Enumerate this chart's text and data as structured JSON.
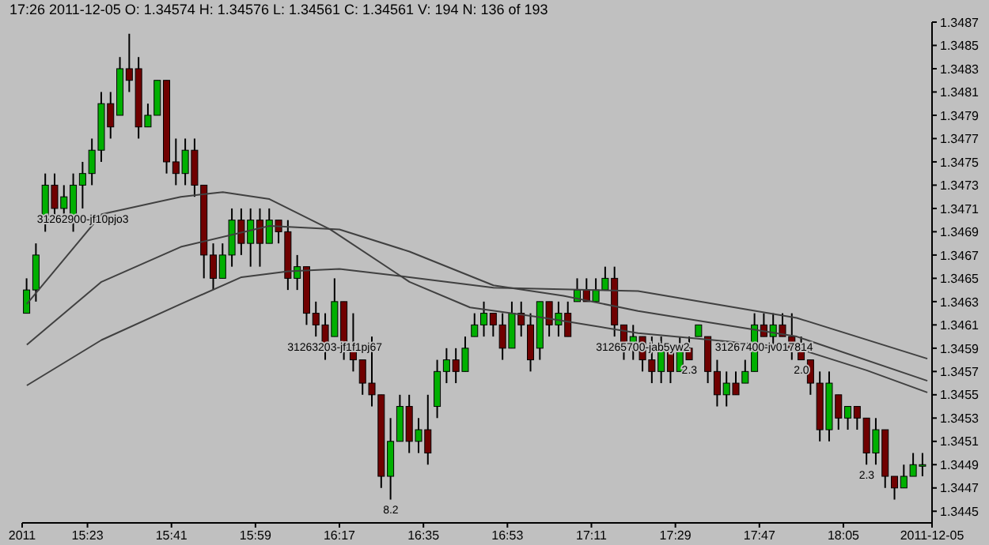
{
  "chart_data": {
    "type": "candlestick",
    "title": "17:26 2011-12-05 O: 1.34574 H: 1.34576 L: 1.34561 C: 1.34561 V: 194 N: 136 of 193",
    "x": [
      "2011-12-05T15:10",
      "2011-12-05T15:12",
      "2011-12-05T15:14",
      "2011-12-05T15:16",
      "2011-12-05T15:18",
      "2011-12-05T15:20",
      "2011-12-05T15:22",
      "2011-12-05T15:24",
      "2011-12-05T15:26",
      "2011-12-05T15:28",
      "2011-12-05T15:30",
      "2011-12-05T15:32",
      "2011-12-05T15:34",
      "2011-12-05T15:36",
      "2011-12-05T15:38",
      "2011-12-05T15:40",
      "2011-12-05T15:42",
      "2011-12-05T15:44",
      "2011-12-05T15:46",
      "2011-12-05T15:48",
      "2011-12-05T15:50",
      "2011-12-05T15:52",
      "2011-12-05T15:54",
      "2011-12-05T15:56",
      "2011-12-05T15:58",
      "2011-12-05T16:00",
      "2011-12-05T16:02",
      "2011-12-05T16:04",
      "2011-12-05T16:06",
      "2011-12-05T16:08",
      "2011-12-05T16:10",
      "2011-12-05T16:12",
      "2011-12-05T16:14",
      "2011-12-05T16:16",
      "2011-12-05T16:18",
      "2011-12-05T16:20",
      "2011-12-05T16:22",
      "2011-12-05T16:24",
      "2011-12-05T16:26",
      "2011-12-05T16:28",
      "2011-12-05T16:30",
      "2011-12-05T16:32",
      "2011-12-05T16:34",
      "2011-12-05T16:36",
      "2011-12-05T16:38",
      "2011-12-05T16:40",
      "2011-12-05T16:42",
      "2011-12-05T16:44",
      "2011-12-05T16:46",
      "2011-12-05T16:48",
      "2011-12-05T16:50",
      "2011-12-05T16:52",
      "2011-12-05T16:54",
      "2011-12-05T16:56",
      "2011-12-05T16:58",
      "2011-12-05T17:00",
      "2011-12-05T17:02",
      "2011-12-05T17:04",
      "2011-12-05T17:06",
      "2011-12-05T17:08",
      "2011-12-05T17:10",
      "2011-12-05T17:12",
      "2011-12-05T17:14",
      "2011-12-05T17:16",
      "2011-12-05T17:18",
      "2011-12-05T17:20",
      "2011-12-05T17:22",
      "2011-12-05T17:24",
      "2011-12-05T17:26",
      "2011-12-05T17:28",
      "2011-12-05T17:30",
      "2011-12-05T17:32",
      "2011-12-05T17:34",
      "2011-12-05T17:36",
      "2011-12-05T17:38",
      "2011-12-05T17:40",
      "2011-12-05T17:42",
      "2011-12-05T17:44",
      "2011-12-05T17:46",
      "2011-12-05T17:48",
      "2011-12-05T17:50",
      "2011-12-05T17:52",
      "2011-12-05T17:54",
      "2011-12-05T17:56",
      "2011-12-05T17:58",
      "2011-12-05T18:00",
      "2011-12-05T18:02",
      "2011-12-05T18:04",
      "2011-12-05T18:06",
      "2011-12-05T18:08",
      "2011-12-05T18:10",
      "2011-12-05T18:12",
      "2011-12-05T18:14",
      "2011-12-05T18:16",
      "2011-12-05T18:18",
      "2011-12-05T18:20",
      "2011-12-05T18:22"
    ],
    "ohlc": [
      [
        1.3462,
        1.3465,
        1.3462,
        1.3464
      ],
      [
        1.3464,
        1.3468,
        1.3463,
        1.3467
      ],
      [
        1.347,
        1.3474,
        1.3469,
        1.3473
      ],
      [
        1.3473,
        1.3474,
        1.347,
        1.3471
      ],
      [
        1.3471,
        1.3473,
        1.347,
        1.3472
      ],
      [
        1.347,
        1.3474,
        1.3469,
        1.3473
      ],
      [
        1.3473,
        1.3475,
        1.3471,
        1.3474
      ],
      [
        1.3474,
        1.3477,
        1.3473,
        1.3476
      ],
      [
        1.3476,
        1.3481,
        1.3475,
        1.348
      ],
      [
        1.348,
        1.3481,
        1.3477,
        1.3478
      ],
      [
        1.3479,
        1.3484,
        1.3479,
        1.3483
      ],
      [
        1.3483,
        1.3486,
        1.3481,
        1.3482
      ],
      [
        1.3483,
        1.3484,
        1.3477,
        1.3478
      ],
      [
        1.3478,
        1.348,
        1.3478,
        1.3479
      ],
      [
        1.3479,
        1.3482,
        1.3479,
        1.3482
      ],
      [
        1.3482,
        1.3482,
        1.3474,
        1.3475
      ],
      [
        1.3475,
        1.3477,
        1.3473,
        1.3474
      ],
      [
        1.3474,
        1.3477,
        1.3473,
        1.3476
      ],
      [
        1.3476,
        1.3477,
        1.3472,
        1.3473
      ],
      [
        1.3473,
        1.3473,
        1.3465,
        1.3467
      ],
      [
        1.3467,
        1.3468,
        1.3464,
        1.3465
      ],
      [
        1.3465,
        1.3468,
        1.3465,
        1.3467
      ],
      [
        1.3467,
        1.3471,
        1.3466,
        1.347
      ],
      [
        1.347,
        1.3471,
        1.3467,
        1.3468
      ],
      [
        1.3468,
        1.3471,
        1.3466,
        1.347
      ],
      [
        1.347,
        1.3471,
        1.3466,
        1.3468
      ],
      [
        1.3468,
        1.3471,
        1.3468,
        1.347
      ],
      [
        1.347,
        1.347,
        1.3468,
        1.3469
      ],
      [
        1.3469,
        1.347,
        1.3464,
        1.3465
      ],
      [
        1.3465,
        1.3467,
        1.3464,
        1.3466
      ],
      [
        1.3466,
        1.3466,
        1.3461,
        1.3462
      ],
      [
        1.3462,
        1.3463,
        1.346,
        1.3461
      ],
      [
        1.3461,
        1.3462,
        1.3458,
        1.3459
      ],
      [
        1.346,
        1.3465,
        1.346,
        1.3463
      ],
      [
        1.3463,
        1.3463,
        1.3458,
        1.3459
      ],
      [
        1.3459,
        1.3462,
        1.3457,
        1.3458
      ],
      [
        1.3458,
        1.3458,
        1.3455,
        1.3456
      ],
      [
        1.3456,
        1.346,
        1.3454,
        1.3455
      ],
      [
        1.3455,
        1.3455,
        1.3447,
        1.3448
      ],
      [
        1.3448,
        1.3453,
        1.3446,
        1.3451
      ],
      [
        1.3451,
        1.3455,
        1.3451,
        1.3454
      ],
      [
        1.3454,
        1.3455,
        1.345,
        1.3451
      ],
      [
        1.3451,
        1.3453,
        1.345,
        1.3452
      ],
      [
        1.3452,
        1.3455,
        1.3449,
        1.345
      ],
      [
        1.3454,
        1.3458,
        1.3453,
        1.3457
      ],
      [
        1.3457,
        1.3459,
        1.3456,
        1.3458
      ],
      [
        1.3458,
        1.3459,
        1.3456,
        1.3457
      ],
      [
        1.3457,
        1.346,
        1.3457,
        1.3459
      ],
      [
        1.346,
        1.3462,
        1.346,
        1.3461
      ],
      [
        1.3461,
        1.3463,
        1.346,
        1.3462
      ],
      [
        1.3462,
        1.3462,
        1.346,
        1.3461
      ],
      [
        1.3461,
        1.3462,
        1.3458,
        1.3459
      ],
      [
        1.3459,
        1.3463,
        1.3459,
        1.3462
      ],
      [
        1.3462,
        1.3463,
        1.346,
        1.3461
      ],
      [
        1.3461,
        1.3462,
        1.3457,
        1.3458
      ],
      [
        1.3459,
        1.3463,
        1.3458,
        1.3463
      ],
      [
        1.3463,
        1.3463,
        1.346,
        1.3461
      ],
      [
        1.3461,
        1.3463,
        1.346,
        1.3462
      ],
      [
        1.3462,
        1.3463,
        1.346,
        1.346
      ],
      [
        1.3463,
        1.3465,
        1.3463,
        1.3464
      ],
      [
        1.3464,
        1.3465,
        1.3463,
        1.3463
      ],
      [
        1.3463,
        1.3465,
        1.3463,
        1.3464
      ],
      [
        1.3464,
        1.3466,
        1.3464,
        1.3465
      ],
      [
        1.3465,
        1.3466,
        1.346,
        1.3461
      ],
      [
        1.3461,
        1.3461,
        1.3458,
        1.3459
      ],
      [
        1.3459,
        1.3461,
        1.3458,
        1.346
      ],
      [
        1.346,
        1.346,
        1.3457,
        1.3458
      ],
      [
        1.3458,
        1.346,
        1.3456,
        1.3457
      ],
      [
        1.3457,
        1.346,
        1.3456,
        1.3459
      ],
      [
        1.3459,
        1.3459,
        1.3456,
        1.3457
      ],
      [
        1.3457,
        1.346,
        1.3457,
        1.3459
      ],
      [
        1.3459,
        1.346,
        1.3458,
        1.3458
      ],
      [
        1.346,
        1.3461,
        1.346,
        1.3461
      ],
      [
        1.346,
        1.346,
        1.3456,
        1.3457
      ],
      [
        1.3457,
        1.3458,
        1.3454,
        1.3455
      ],
      [
        1.3455,
        1.3457,
        1.3454,
        1.3456
      ],
      [
        1.3456,
        1.3457,
        1.3455,
        1.3455
      ],
      [
        1.3456,
        1.3458,
        1.3456,
        1.3457
      ],
      [
        1.3457,
        1.3462,
        1.3457,
        1.3461
      ],
      [
        1.3461,
        1.3462,
        1.346,
        1.346
      ],
      [
        1.346,
        1.3462,
        1.3459,
        1.3461
      ],
      [
        1.3461,
        1.3462,
        1.346,
        1.346
      ],
      [
        1.346,
        1.3462,
        1.3458,
        1.3459
      ],
      [
        1.3459,
        1.346,
        1.3458,
        1.3458
      ],
      [
        1.3458,
        1.3458,
        1.3455,
        1.3456
      ],
      [
        1.3456,
        1.3457,
        1.3451,
        1.3452
      ],
      [
        1.3452,
        1.3457,
        1.3451,
        1.3456
      ],
      [
        1.3455,
        1.3455,
        1.3452,
        1.3453
      ],
      [
        1.3453,
        1.3454,
        1.3452,
        1.3454
      ],
      [
        1.3454,
        1.3454,
        1.3452,
        1.3453
      ],
      [
        1.3453,
        1.3453,
        1.3449,
        1.345
      ],
      [
        1.345,
        1.3453,
        1.3449,
        1.3452
      ],
      [
        1.3452,
        1.3452,
        1.3447,
        1.3448
      ],
      [
        1.3448,
        1.3448,
        1.3446,
        1.3447
      ],
      [
        1.3447,
        1.3449,
        1.3447,
        1.3448
      ],
      [
        1.3448,
        1.345,
        1.3448,
        1.3449
      ],
      [
        1.3449,
        1.345,
        1.3448,
        1.3449
      ]
    ],
    "series": [
      {
        "type": "line",
        "color": "#404040",
        "x": [
          "2011-12-05T15:10",
          "2011-12-05T15:26",
          "2011-12-05T15:43",
          "2011-12-05T15:52",
          "2011-12-05T16:02",
          "2011-12-05T16:15",
          "2011-12-05T16:32",
          "2011-12-05T16:45",
          "2011-12-05T17:01",
          "2011-12-05T17:21",
          "2011-12-05T17:37",
          "2011-12-05T17:55",
          "2011-12-05T18:10",
          "2011-12-05T18:23"
        ],
        "values": [
          1.34628,
          1.34705,
          1.3472,
          1.34724,
          1.34718,
          1.34692,
          1.34647,
          1.34625,
          1.34616,
          1.34603,
          1.34597,
          1.3459,
          1.34571,
          1.34552
        ]
      },
      {
        "type": "line",
        "color": "#404040",
        "x": [
          "2011-12-05T15:10",
          "2011-12-05T15:26",
          "2011-12-05T15:43",
          "2011-12-05T16:02",
          "2011-12-05T16:17",
          "2011-12-05T16:32",
          "2011-12-05T16:50",
          "2011-12-05T17:05",
          "2011-12-05T17:21",
          "2011-12-05T17:55",
          "2011-12-05T18:23"
        ],
        "values": [
          1.34593,
          1.34647,
          1.34677,
          1.34695,
          1.34692,
          1.34673,
          1.34644,
          1.34635,
          1.34622,
          1.346,
          1.34562
        ]
      },
      {
        "type": "line",
        "color": "#404040",
        "x": [
          "2011-12-05T15:10",
          "2011-12-05T15:26",
          "2011-12-05T15:43",
          "2011-12-05T15:56",
          "2011-12-05T16:06",
          "2011-12-05T16:17",
          "2011-12-05T16:32",
          "2011-12-05T16:50",
          "2011-12-05T17:21",
          "2011-12-05T17:55",
          "2011-12-05T18:23"
        ],
        "values": [
          1.34558,
          1.34597,
          1.34628,
          1.34651,
          1.34656,
          1.34658,
          1.34651,
          1.34642,
          1.34639,
          1.34616,
          1.34581
        ]
      }
    ],
    "xlim": [
      "2011-12-05T15:09",
      "2011-12-05T18:24"
    ],
    "xticks": [
      {
        "value": "2011-12-05T15:09",
        "label": "2011"
      },
      {
        "value": "2011-12-05T15:23",
        "label": "15:23"
      },
      {
        "value": "2011-12-05T15:41",
        "label": "15:41"
      },
      {
        "value": "2011-12-05T15:59",
        "label": "15:59"
      },
      {
        "value": "2011-12-05T16:17",
        "label": "16:17"
      },
      {
        "value": "2011-12-05T16:35",
        "label": "16:35"
      },
      {
        "value": "2011-12-05T16:53",
        "label": "16:53"
      },
      {
        "value": "2011-12-05T17:11",
        "label": "17:11"
      },
      {
        "value": "2011-12-05T17:29",
        "label": "17:29"
      },
      {
        "value": "2011-12-05T17:47",
        "label": "17:47"
      },
      {
        "value": "2011-12-05T18:05",
        "label": "18:05"
      },
      {
        "value": "2011-12-05T18:24",
        "label": "2011-12-05"
      }
    ],
    "ylim": [
      1.3444,
      1.3487
    ],
    "yticks": [
      1.3445,
      1.3447,
      1.3449,
      1.3451,
      1.3453,
      1.3455,
      1.3457,
      1.3459,
      1.3461,
      1.3463,
      1.3465,
      1.3467,
      1.3469,
      1.3471,
      1.3473,
      1.3475,
      1.3477,
      1.3479,
      1.3481,
      1.3483,
      1.3485,
      1.3487
    ],
    "annotations": [
      {
        "text": "31262900-jf10pjo3",
        "x": "2011-12-05T15:22",
        "y": 1.3471
      },
      {
        "text": "31263203-jf1f1pj67",
        "x": "2011-12-05T16:16",
        "y": 1.346
      },
      {
        "text": "31265700-jab5yw2",
        "x": "2011-12-05T17:22",
        "y": 1.346
      },
      {
        "text": "31267400-jv017814",
        "x": "2011-12-05T17:48",
        "y": 1.346
      },
      {
        "text": "8.2",
        "x": "2011-12-05T16:28",
        "y": 1.3446
      },
      {
        "text": "2.3",
        "x": "2011-12-05T17:32",
        "y": 1.3458
      },
      {
        "text": "2.0",
        "x": "2011-12-05T17:56",
        "y": 1.3458
      },
      {
        "text": "2.3",
        "x": "2011-12-05T18:10",
        "y": 1.3449
      }
    ],
    "grid": false
  }
}
